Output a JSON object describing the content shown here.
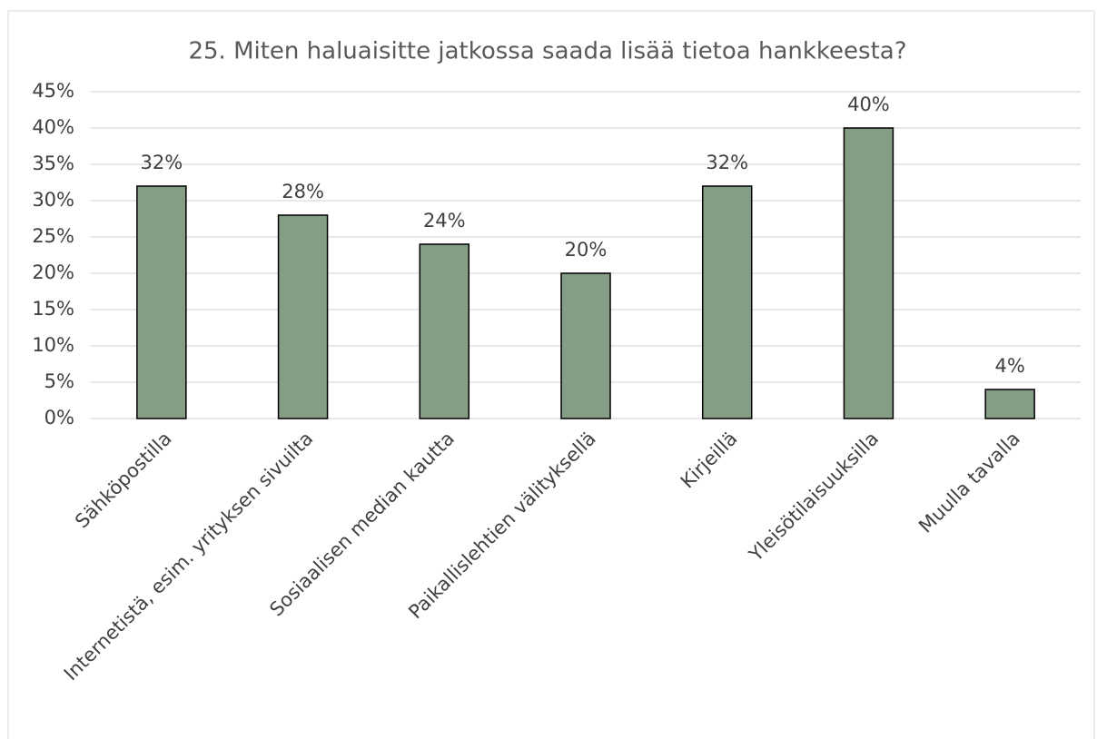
{
  "chart_data": {
    "type": "bar",
    "title": "25. Miten haluaisitte jatkossa saada lisää tietoa hankkeesta?",
    "categories": [
      "Sähköpostilla",
      "Internetistä, esim. yrityksen sivuilta",
      "Sosiaalisen median kautta",
      "Paikallislehtien välityksellä",
      "Kirjeillä",
      "Yleisötilaisuuksilla",
      "Muulla tavalla"
    ],
    "values": [
      32,
      28,
      24,
      20,
      32,
      40,
      4
    ],
    "value_labels": [
      "32%",
      "28%",
      "24%",
      "20%",
      "32%",
      "40%",
      "4%"
    ],
    "color": "#859d84",
    "ylim": [
      0,
      45
    ],
    "yticks": [
      {
        "value": 0,
        "label": "0%"
      },
      {
        "value": 5,
        "label": "5%"
      },
      {
        "value": 10,
        "label": "10%"
      },
      {
        "value": 15,
        "label": "15%"
      },
      {
        "value": 20,
        "label": "20%"
      },
      {
        "value": 25,
        "label": "25%"
      },
      {
        "value": 30,
        "label": "30%"
      },
      {
        "value": 35,
        "label": "35%"
      },
      {
        "value": 40,
        "label": "40%"
      },
      {
        "value": 45,
        "label": "45%"
      }
    ],
    "grid": true
  }
}
